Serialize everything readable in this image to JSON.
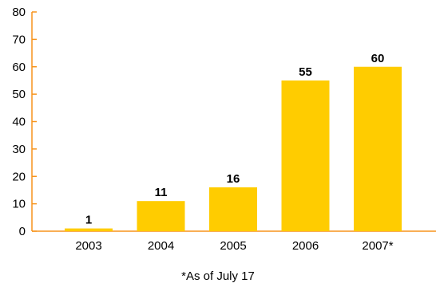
{
  "chart_data": {
    "type": "bar",
    "categories": [
      "2003",
      "2004",
      "2005",
      "2006",
      "2007*"
    ],
    "values": [
      1,
      11,
      16,
      55,
      60
    ],
    "data_labels": [
      "1",
      "11",
      "16",
      "55",
      "60"
    ],
    "title": "",
    "xlabel": "",
    "ylabel": "",
    "ylim": [
      0,
      80
    ],
    "yticks": [
      0,
      10,
      20,
      30,
      40,
      50,
      60,
      70,
      80
    ],
    "grid": false,
    "bar_color": "#FFCC00",
    "axis_color": "#F7941D"
  },
  "footnote": "*As of July 17"
}
